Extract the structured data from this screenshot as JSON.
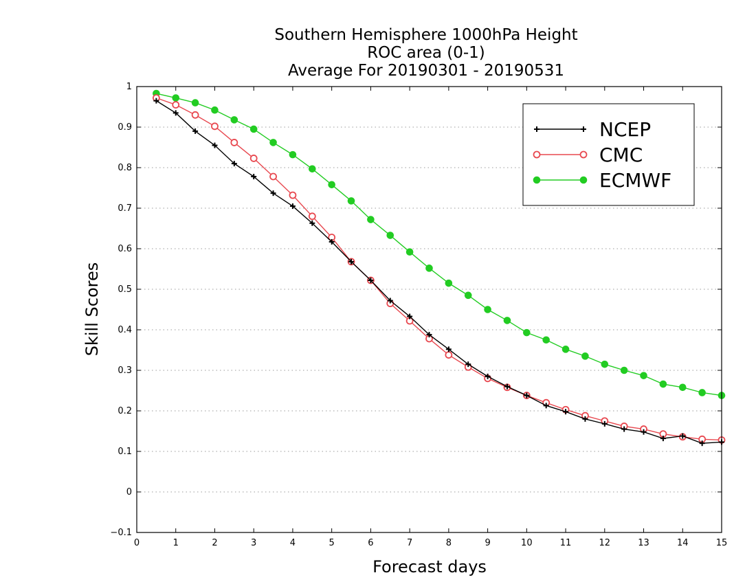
{
  "chart_data": {
    "type": "line",
    "title": [
      "Southern Hemisphere 1000hPa Height",
      "ROC area (0-1)",
      "Average For 20190301 - 20190531"
    ],
    "xlabel": "Forecast days",
    "ylabel": "Skill Scores",
    "xlim": [
      0,
      15
    ],
    "ylim": [
      -0.1,
      1
    ],
    "xticks": [
      "0",
      "1",
      "2",
      "3",
      "4",
      "5",
      "6",
      "7",
      "8",
      "9",
      "10",
      "11",
      "12",
      "13",
      "14",
      "15"
    ],
    "yticks": [
      "−0.1",
      "0",
      "0.1",
      "0.2",
      "0.3",
      "0.4",
      "0.5",
      "0.6",
      "0.7",
      "0.8",
      "0.9",
      "1"
    ],
    "grid": "horizontal-dotted",
    "legend_position": "top-right",
    "x": [
      0.5,
      1,
      1.5,
      2,
      2.5,
      3,
      3.5,
      4,
      4.5,
      5,
      5.5,
      6,
      6.5,
      7,
      7.5,
      8,
      8.5,
      9,
      9.5,
      10,
      10.5,
      11,
      11.5,
      12,
      12.5,
      13,
      13.5,
      14,
      14.5,
      15
    ],
    "series": [
      {
        "name": "NCEP",
        "color": "#000000",
        "marker": "plus",
        "values": [
          0.965,
          0.935,
          0.89,
          0.855,
          0.81,
          0.778,
          0.737,
          0.705,
          0.663,
          0.617,
          0.568,
          0.522,
          0.472,
          0.433,
          0.388,
          0.352,
          0.315,
          0.285,
          0.26,
          0.238,
          0.213,
          0.198,
          0.18,
          0.168,
          0.155,
          0.148,
          0.132,
          0.138,
          0.12,
          0.123
        ]
      },
      {
        "name": "CMC",
        "color": "#e8484f",
        "marker": "open-circle",
        "values": [
          0.972,
          0.955,
          0.93,
          0.902,
          0.862,
          0.823,
          0.778,
          0.732,
          0.68,
          0.628,
          0.568,
          0.522,
          0.465,
          0.422,
          0.378,
          0.338,
          0.308,
          0.28,
          0.258,
          0.238,
          0.22,
          0.203,
          0.188,
          0.175,
          0.162,
          0.155,
          0.143,
          0.136,
          0.13,
          0.128
        ]
      },
      {
        "name": "ECMWF",
        "color": "#22cc22",
        "marker": "filled-circle",
        "values": [
          0.983,
          0.972,
          0.96,
          0.942,
          0.918,
          0.895,
          0.862,
          0.832,
          0.797,
          0.758,
          0.718,
          0.672,
          0.633,
          0.592,
          0.552,
          0.515,
          0.485,
          0.45,
          0.423,
          0.393,
          0.375,
          0.352,
          0.335,
          0.315,
          0.3,
          0.287,
          0.266,
          0.258,
          0.245,
          0.238
        ]
      }
    ]
  }
}
